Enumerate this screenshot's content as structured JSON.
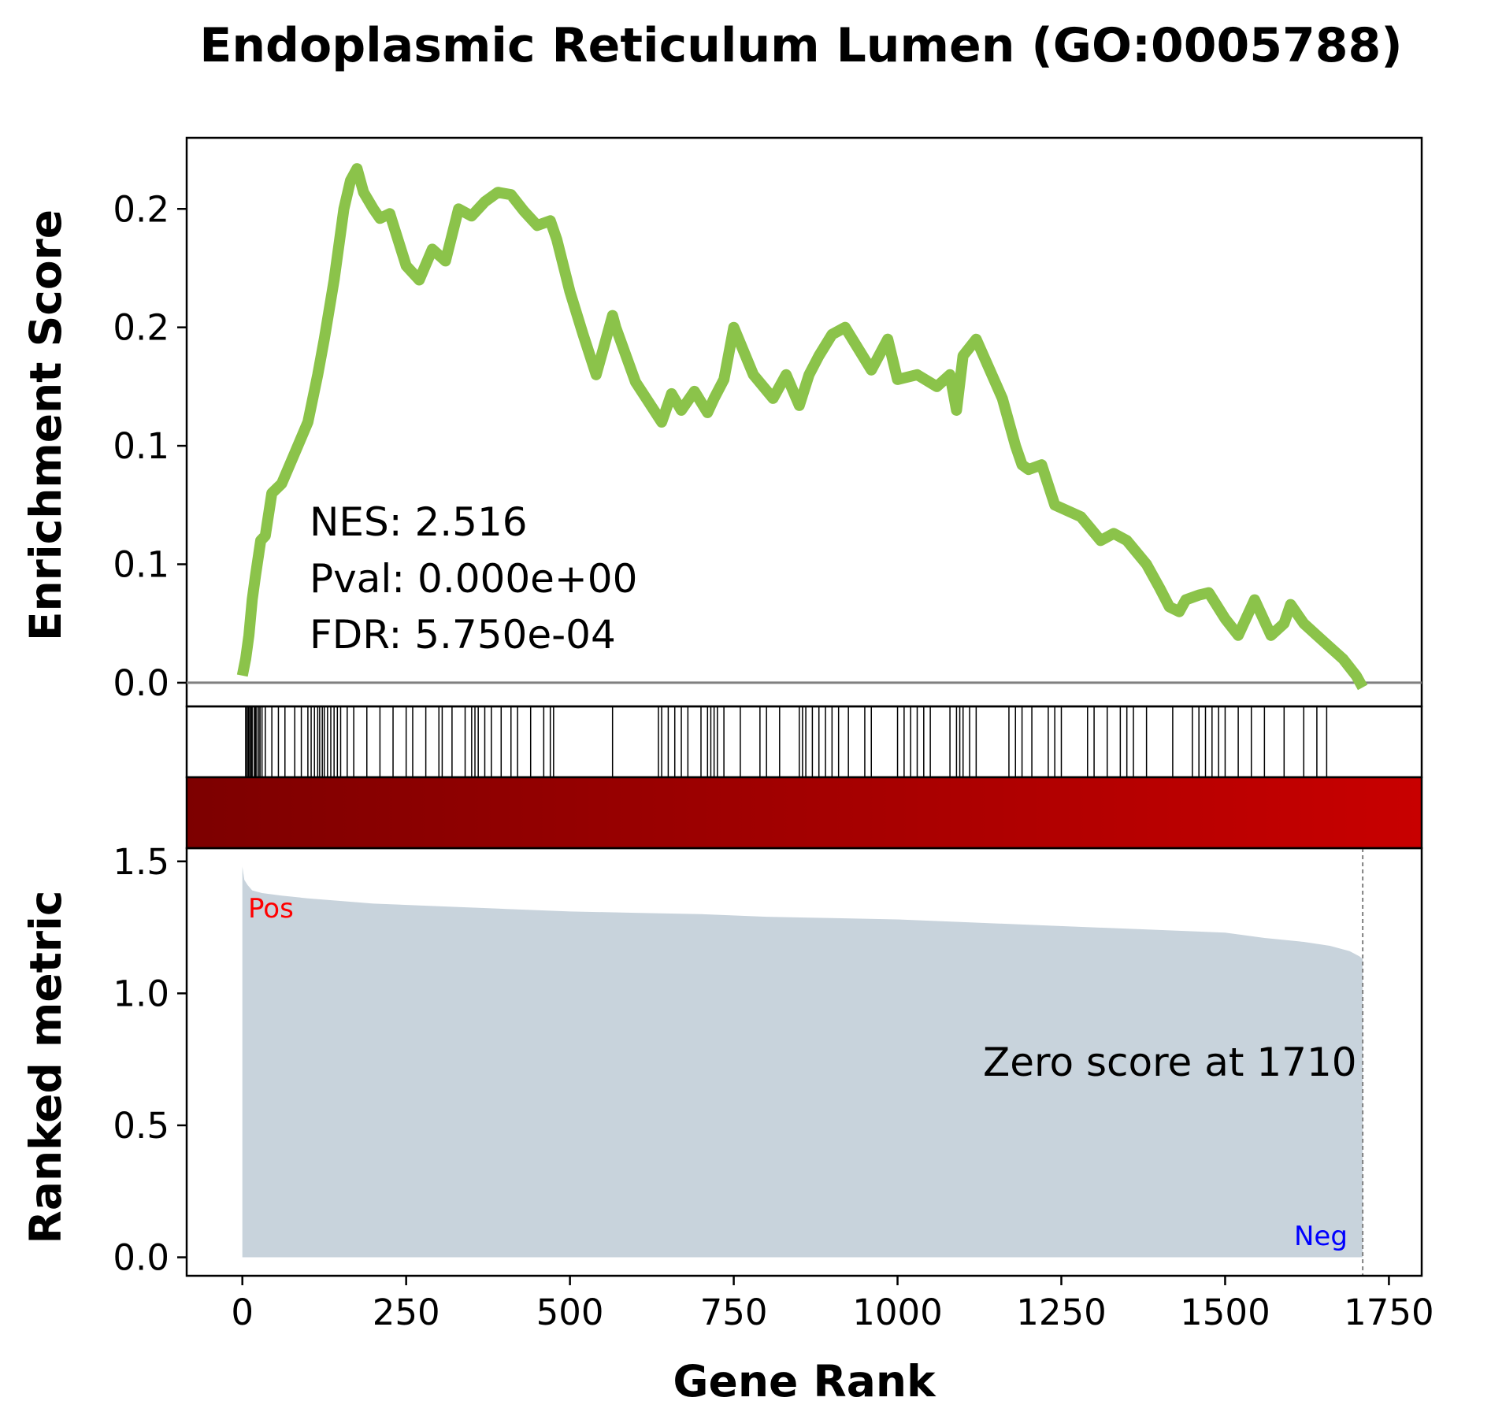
{
  "chart_data": {
    "type": "line",
    "title": "Endoplasmic Reticulum Lumen (GO:0005788)",
    "xlabel": "Gene Rank",
    "colors": {
      "running_es": "#8bc34a",
      "ranked_fill": "#c8d3dc",
      "heat_start": "#7d0000",
      "heat_end": "#c80000",
      "pos_label": "#ff0000",
      "neg_label": "#0000ff",
      "zero_line": "#808080"
    },
    "es_panel": {
      "ylabel": "Enrichment Score",
      "ylim": [
        -0.01,
        0.23
      ],
      "yticks": [
        0.0,
        0.05,
        0.1,
        0.15,
        0.2
      ],
      "ytick_labels": [
        "0.0",
        "0.1",
        "0.1",
        "0.2",
        "0.2"
      ],
      "running_es": {
        "x": [
          0,
          5,
          10,
          15,
          20,
          28,
          35,
          45,
          60,
          80,
          100,
          115,
          125,
          140,
          155,
          165,
          175,
          185,
          200,
          210,
          225,
          250,
          270,
          290,
          310,
          330,
          350,
          370,
          390,
          410,
          430,
          450,
          470,
          480,
          500,
          520,
          540,
          565,
          570,
          600,
          640,
          655,
          670,
          690,
          710,
          720,
          735,
          750,
          780,
          810,
          830,
          850,
          865,
          880,
          900,
          920,
          960,
          985,
          1000,
          1030,
          1060,
          1080,
          1090,
          1100,
          1120,
          1160,
          1180,
          1190,
          1200,
          1220,
          1240,
          1280,
          1310,
          1330,
          1350,
          1380,
          1400,
          1415,
          1430,
          1440,
          1460,
          1475,
          1500,
          1520,
          1545,
          1570,
          1590,
          1600,
          1620,
          1640,
          1660,
          1680,
          1700,
          1710
        ],
        "y": [
          0.003,
          0.01,
          0.02,
          0.035,
          0.045,
          0.06,
          0.062,
          0.08,
          0.084,
          0.097,
          0.11,
          0.13,
          0.145,
          0.17,
          0.2,
          0.212,
          0.217,
          0.207,
          0.2,
          0.196,
          0.198,
          0.176,
          0.17,
          0.183,
          0.178,
          0.2,
          0.197,
          0.203,
          0.207,
          0.206,
          0.199,
          0.193,
          0.195,
          0.187,
          0.165,
          0.147,
          0.13,
          0.155,
          0.15,
          0.127,
          0.11,
          0.122,
          0.115,
          0.123,
          0.114,
          0.12,
          0.128,
          0.15,
          0.13,
          0.12,
          0.13,
          0.117,
          0.13,
          0.138,
          0.147,
          0.15,
          0.132,
          0.145,
          0.128,
          0.13,
          0.125,
          0.13,
          0.115,
          0.138,
          0.145,
          0.12,
          0.1,
          0.092,
          0.09,
          0.092,
          0.075,
          0.07,
          0.06,
          0.063,
          0.06,
          0.05,
          0.04,
          0.032,
          0.03,
          0.035,
          0.037,
          0.038,
          0.027,
          0.02,
          0.035,
          0.02,
          0.025,
          0.033,
          0.025,
          0.02,
          0.015,
          0.01,
          0.003,
          -0.002
        ]
      },
      "stats_lines": [
        "NES: 2.516",
        "Pval: 0.000e+00",
        "FDR: 5.750e-04"
      ]
    },
    "hits": [
      5,
      7,
      9,
      10,
      12,
      14,
      15,
      18,
      20,
      22,
      25,
      27,
      30,
      35,
      45,
      55,
      65,
      80,
      90,
      100,
      105,
      110,
      115,
      118,
      122,
      125,
      130,
      135,
      140,
      145,
      150,
      160,
      170,
      190,
      210,
      230,
      250,
      260,
      280,
      300,
      305,
      320,
      340,
      350,
      355,
      360,
      370,
      380,
      395,
      410,
      420,
      440,
      460,
      470,
      475,
      565,
      635,
      640,
      650,
      660,
      670,
      680,
      700,
      710,
      715,
      720,
      725,
      735,
      760,
      790,
      800,
      820,
      850,
      855,
      860,
      870,
      880,
      890,
      900,
      910,
      925,
      950,
      960,
      1000,
      1010,
      1020,
      1030,
      1040,
      1050,
      1080,
      1090,
      1095,
      1100,
      1110,
      1120,
      1170,
      1180,
      1190,
      1205,
      1230,
      1240,
      1250,
      1290,
      1300,
      1320,
      1340,
      1350,
      1360,
      1380,
      1420,
      1450,
      1460,
      1470,
      1480,
      1490,
      1500,
      1520,
      1540,
      1560,
      1590,
      1620,
      1640,
      1655
    ],
    "rank_panel": {
      "ylabel": "Ranked metric",
      "ylim": [
        -0.07,
        1.55
      ],
      "yticks": [
        0.0,
        0.5,
        1.0,
        1.5
      ],
      "ytick_labels": [
        "0.0",
        "0.5",
        "1.0",
        "1.5"
      ],
      "metric": {
        "x": [
          0,
          3,
          8,
          15,
          30,
          60,
          100,
          200,
          300,
          400,
          500,
          600,
          700,
          800,
          900,
          1000,
          1100,
          1200,
          1300,
          1400,
          1500,
          1560,
          1620,
          1660,
          1690,
          1705,
          1710
        ],
        "y": [
          1.48,
          1.43,
          1.41,
          1.39,
          1.38,
          1.37,
          1.36,
          1.34,
          1.33,
          1.32,
          1.31,
          1.305,
          1.3,
          1.29,
          1.285,
          1.28,
          1.27,
          1.26,
          1.25,
          1.24,
          1.23,
          1.21,
          1.195,
          1.18,
          1.16,
          1.14,
          1.13
        ]
      },
      "pos_label": "Pos",
      "neg_label": "Neg",
      "zero_score_text": "Zero score at 1710",
      "zero_score_x": 1710
    },
    "xlim": [
      -85,
      1800
    ],
    "xticks": [
      0,
      250,
      500,
      750,
      1000,
      1250,
      1500,
      1750
    ],
    "xtick_labels": [
      "0",
      "250",
      "500",
      "750",
      "1000",
      "1250",
      "1500",
      "1750"
    ],
    "grid": false
  }
}
